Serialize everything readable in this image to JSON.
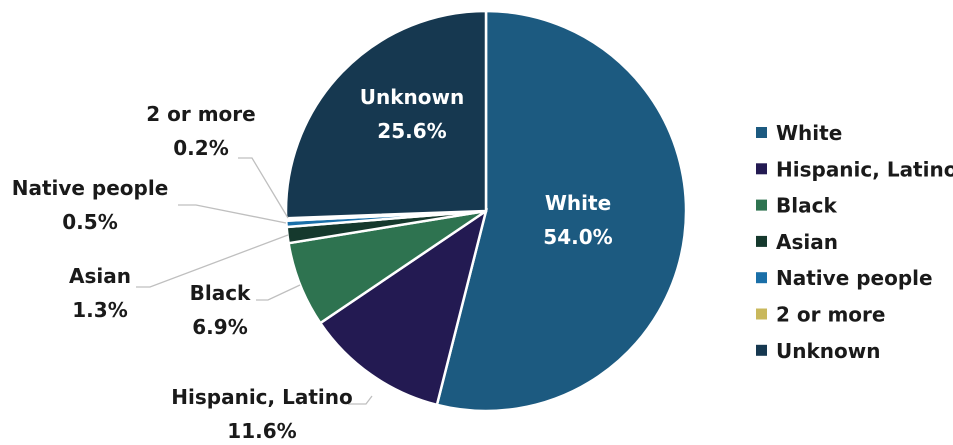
{
  "chart_data": {
    "type": "pie",
    "title": "",
    "legend_position": "right",
    "slices": [
      {
        "name": "White",
        "value": 54.0,
        "label": "54.0%",
        "color": "#1c5a80"
      },
      {
        "name": "Hispanic, Latino",
        "value": 11.6,
        "label": "11.6%",
        "color": "#231a52"
      },
      {
        "name": "Black",
        "value": 6.9,
        "label": "6.9%",
        "color": "#2e7350"
      },
      {
        "name": "Asian",
        "value": 1.3,
        "label": "1.3%",
        "color": "#15392d"
      },
      {
        "name": "Native people",
        "value": 0.5,
        "label": "0.5%",
        "color": "#1a6fa8"
      },
      {
        "name": "2 or more",
        "value": 0.2,
        "label": "0.2%",
        "color": "#c9b85c"
      },
      {
        "name": "Unknown",
        "value": 25.6,
        "label": "25.6%",
        "color": "#163850"
      }
    ]
  }
}
